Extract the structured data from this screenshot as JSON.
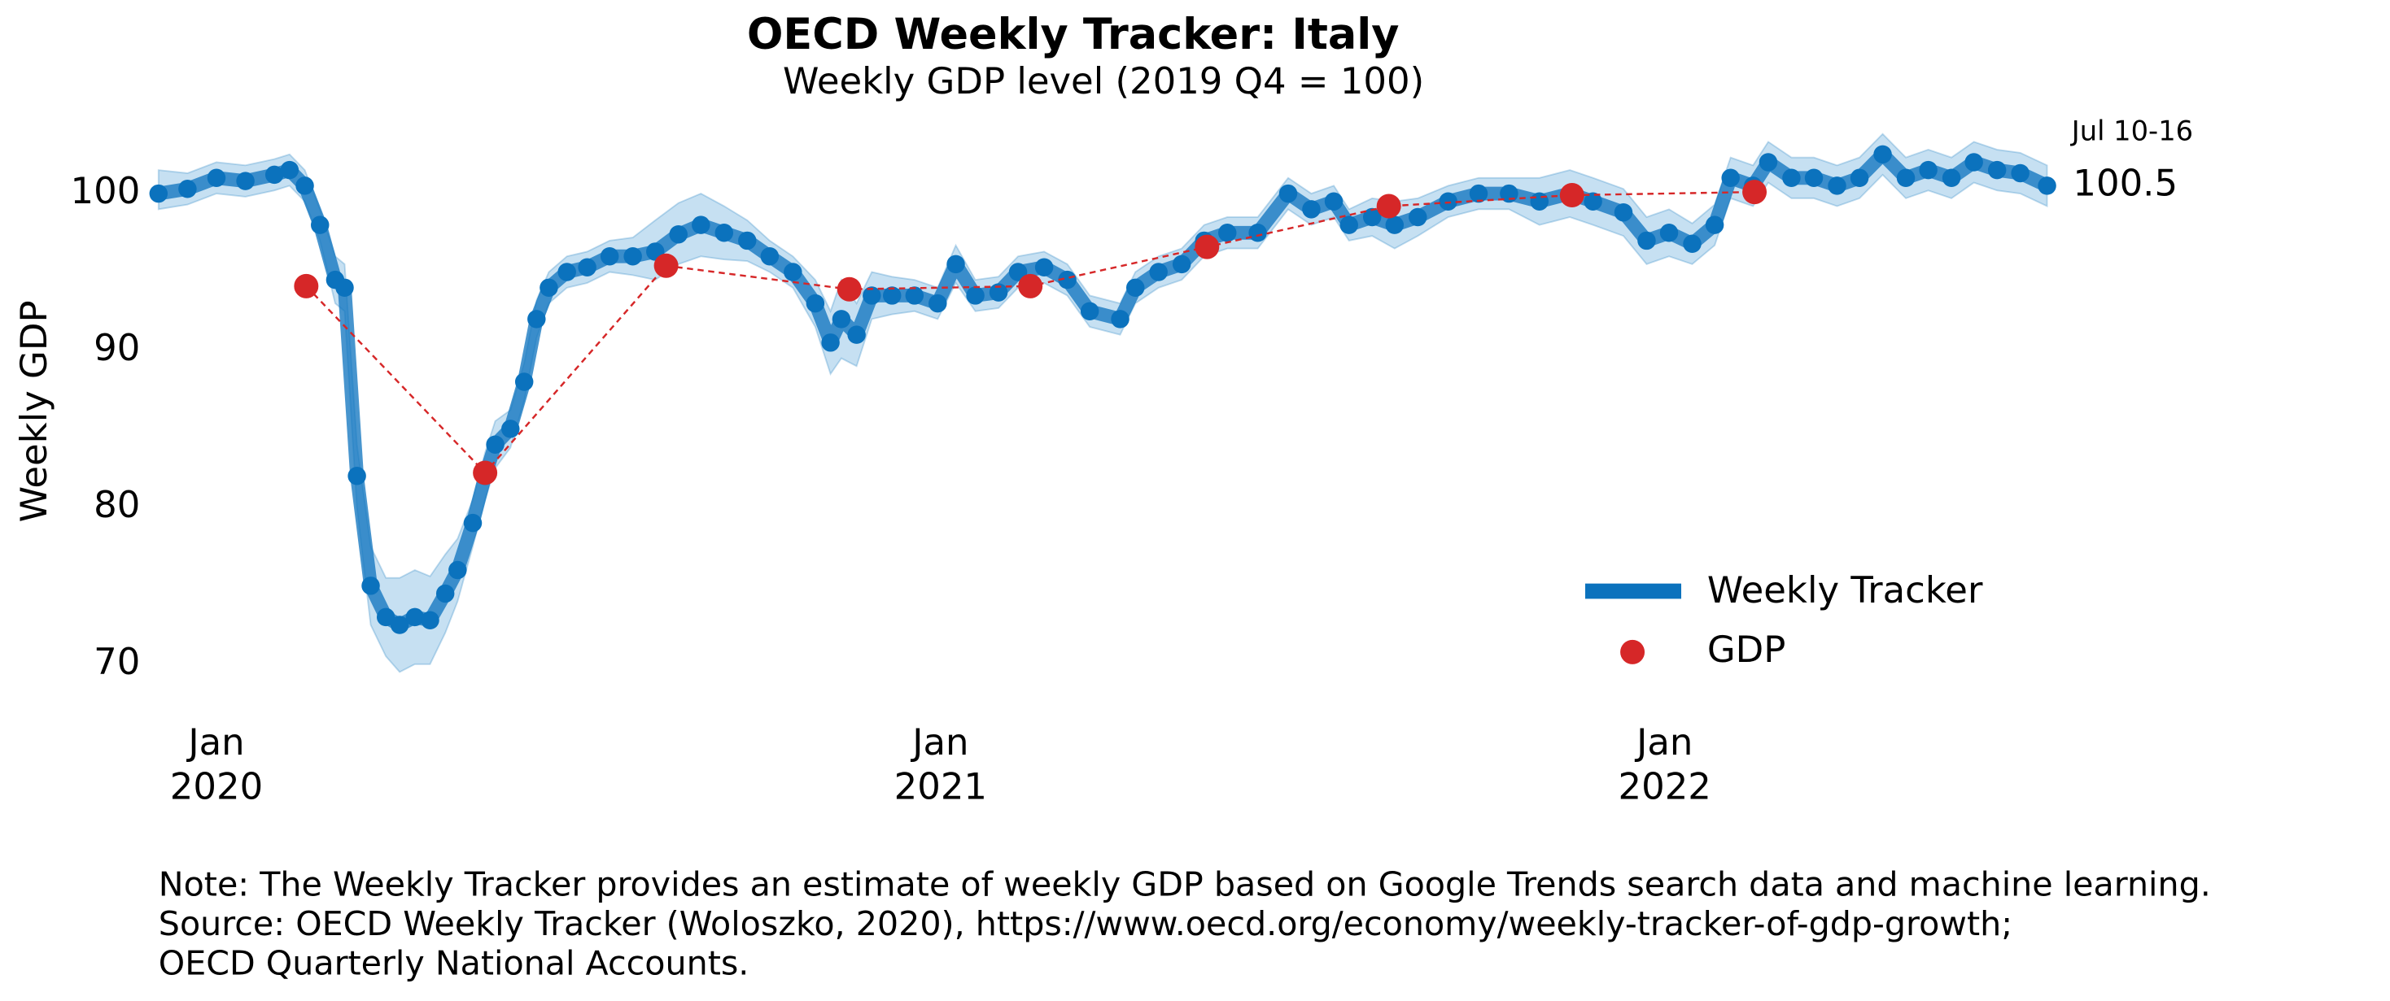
{
  "chart_data": {
    "type": "line",
    "title": "OECD Weekly Tracker: Italy",
    "subtitle": "Weekly GDP level (2019 Q4 = 100)",
    "ylabel": "Weekly GDP",
    "xlim": [
      2019.92,
      2022.528
    ],
    "ylim": [
      66.5,
      105
    ],
    "yticks": [
      70,
      80,
      90,
      100
    ],
    "xticks": [
      {
        "value": 2020,
        "label": "Jan\n2020"
      },
      {
        "value": 2021,
        "label": "Jan\n2021"
      },
      {
        "value": 2022,
        "label": "Jan\n2022"
      }
    ],
    "grid": false,
    "legend": "lower right",
    "series": [
      {
        "name": "Weekly Tracker",
        "color": "#0b72bd",
        "band_color": "#c6e0f2",
        "x": [
          2019.92,
          2019.96,
          2020.0,
          2020.04,
          2020.08,
          2020.101,
          2020.122,
          2020.143,
          2020.164,
          2020.177,
          2020.194,
          2020.213,
          2020.234,
          2020.253,
          2020.274,
          2020.295,
          2020.316,
          2020.333,
          2020.354,
          2020.371,
          2020.385,
          2020.406,
          2020.425,
          2020.442,
          2020.459,
          2020.484,
          2020.512,
          2020.543,
          2020.575,
          2020.606,
          2020.638,
          2020.669,
          2020.701,
          2020.733,
          2020.764,
          2020.796,
          2020.827,
          2020.848,
          2020.863,
          2020.884,
          2020.905,
          2020.933,
          2020.964,
          2020.996,
          2021.021,
          2021.048,
          2021.08,
          2021.107,
          2021.143,
          2021.175,
          2021.206,
          2021.248,
          2021.269,
          2021.301,
          2021.333,
          2021.364,
          2021.396,
          2021.438,
          2021.48,
          2021.512,
          2021.543,
          2021.564,
          2021.596,
          2021.627,
          2021.659,
          2021.701,
          2021.743,
          2021.785,
          2021.827,
          2021.869,
          2021.901,
          2021.943,
          2021.975,
          2022.006,
          2022.038,
          2022.069,
          2022.091,
          2022.122,
          2022.143,
          2022.175,
          2022.206,
          2022.238,
          2022.269,
          2022.301,
          2022.333,
          2022.364,
          2022.396,
          2022.427,
          2022.459,
          2022.491,
          2022.528
        ],
        "values": [
          100,
          100.3,
          101,
          100.8,
          101.2,
          101.5,
          100.5,
          98,
          94.5,
          94,
          82,
          75,
          73,
          72.5,
          73,
          72.8,
          74.5,
          76,
          79,
          82,
          84,
          85,
          88,
          92,
          94,
          95,
          95.3,
          96,
          96,
          96.3,
          97.4,
          98,
          97.5,
          97,
          96,
          95,
          93,
          90.5,
          92,
          91,
          93.5,
          93.5,
          93.5,
          93,
          95.5,
          93.5,
          93.7,
          95,
          95.3,
          94.5,
          92.5,
          92,
          94,
          95,
          95.5,
          97,
          97.5,
          97.5,
          100,
          99,
          99.5,
          98,
          98.5,
          98,
          98.5,
          99.5,
          100,
          100,
          99.5,
          100,
          99.5,
          98.8,
          97,
          97.5,
          96.8,
          98,
          101,
          100.5,
          102,
          101,
          101,
          100.5,
          101,
          102.5,
          101,
          101.5,
          101,
          102,
          101.5,
          101.3,
          100.5
        ],
        "lower": [
          99,
          99.3,
          100,
          99.8,
          100.2,
          100.5,
          99.5,
          97,
          93,
          92.5,
          80,
          72.5,
          70.5,
          69.5,
          70,
          70,
          72,
          74,
          77.5,
          80.5,
          82.5,
          83.8,
          86.8,
          90.8,
          93,
          94,
          94.3,
          95,
          94.8,
          94.5,
          95.5,
          96,
          95.8,
          95.7,
          95,
          94,
          91.5,
          88.5,
          89.5,
          89,
          92,
          92.3,
          92.5,
          92,
          94.3,
          92.5,
          92.7,
          94,
          94.3,
          93.5,
          91.5,
          91,
          93,
          94,
          94.5,
          96,
          96.5,
          96.5,
          99,
          98,
          98.5,
          97,
          97.3,
          96.5,
          97.3,
          98.5,
          99,
          99,
          98,
          98.5,
          98,
          97.3,
          95.5,
          96,
          95.5,
          96.7,
          99.7,
          99.2,
          100.7,
          99.7,
          99.7,
          99.2,
          99.7,
          101.2,
          99.7,
          100.2,
          99.7,
          100.7,
          100.2,
          100,
          99.2
        ],
        "upper": [
          101.5,
          101.3,
          102,
          101.8,
          102.2,
          102.5,
          101.5,
          99,
          96,
          95.5,
          84,
          77.5,
          75.5,
          75.5,
          76,
          75.6,
          77,
          78,
          80.5,
          83.5,
          85.5,
          86.2,
          89.2,
          93.2,
          95,
          96,
          96.3,
          97,
          97.2,
          98.3,
          99.4,
          100,
          99.2,
          98.3,
          97,
          96,
          94.5,
          92.5,
          94.5,
          93,
          95,
          94.7,
          94.5,
          94,
          96.7,
          94.5,
          94.7,
          96,
          96.3,
          95.5,
          93.5,
          93,
          95,
          96,
          96.5,
          98,
          98.5,
          98.5,
          101,
          100,
          100.5,
          99,
          99.7,
          99.5,
          99.7,
          100.5,
          101,
          101,
          101,
          101.5,
          101,
          100.3,
          98.5,
          99,
          98.1,
          99.3,
          102.3,
          101.8,
          103.3,
          102.3,
          102.3,
          101.8,
          102.3,
          103.8,
          102.3,
          102.8,
          102.3,
          103.3,
          102.8,
          102.6,
          101.8
        ]
      },
      {
        "name": "GDP",
        "color": "#d62728",
        "x": [
          2020.124,
          2020.371,
          2020.621,
          2020.874,
          2021.124,
          2021.368,
          2021.619,
          2021.872,
          2022.124
        ],
        "values": [
          94.1,
          82.2,
          95.4,
          93.9,
          94.1,
          96.6,
          99.2,
          99.9,
          100.1
        ]
      }
    ],
    "annotations": [
      {
        "text": "Jul 10-16"
      },
      {
        "text": "100.5"
      }
    ],
    "notes": [
      "Note: The Weekly Tracker provides an estimate of weekly GDP based on Google Trends search data and machine learning.",
      "Source: OECD Weekly Tracker (Woloszko, 2020), https://www.oecd.org/economy/weekly-tracker-of-gdp-growth;",
      "OECD Quarterly National Accounts."
    ]
  }
}
